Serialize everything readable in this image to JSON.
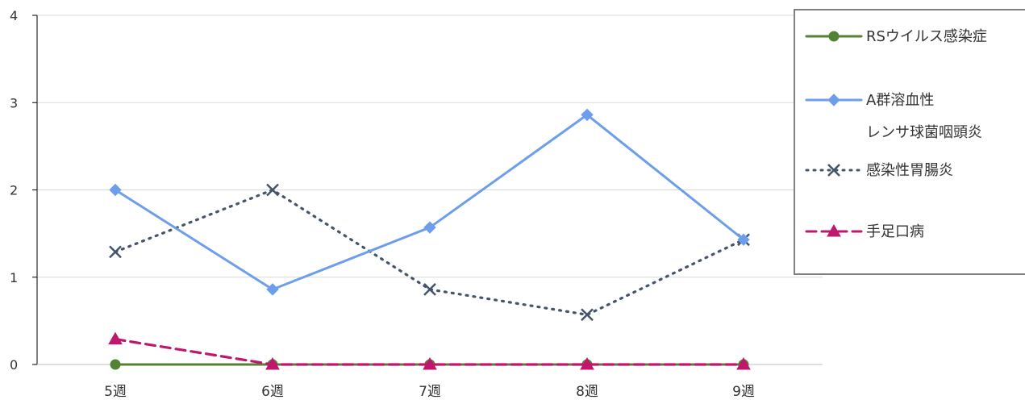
{
  "chart_data": {
    "type": "line",
    "title": "",
    "xlabel": "",
    "ylabel": "",
    "categories": [
      "5週",
      "6週",
      "7週",
      "8週",
      "9週"
    ],
    "ylim": [
      0,
      4
    ],
    "yticks": [
      "0",
      "1",
      "2",
      "3",
      "4"
    ],
    "grid": true,
    "legend_position": "right",
    "series": [
      {
        "name": "RSウイルス感染症",
        "color": "#548235",
        "dash": "solid",
        "marker": "circle",
        "values": [
          0,
          0,
          0,
          0,
          0
        ]
      },
      {
        "name": "A群溶血性 レンサ球菌咽頭炎",
        "name_lines": [
          "A群溶血性",
          "レンサ球菌咽頭炎"
        ],
        "color": "#6d9eeb",
        "dash": "solid",
        "marker": "diamond",
        "values": [
          2.0,
          0.86,
          1.57,
          2.86,
          1.43
        ]
      },
      {
        "name": "感染性胃腸炎",
        "color": "#44546a",
        "dash": "dotted",
        "marker": "x",
        "values": [
          1.29,
          2.0,
          0.86,
          0.57,
          1.43
        ]
      },
      {
        "name": "手足口病",
        "color": "#c0176c",
        "dash": "dashed",
        "marker": "triangle",
        "values": [
          0.29,
          0,
          0,
          0,
          0
        ]
      }
    ]
  }
}
